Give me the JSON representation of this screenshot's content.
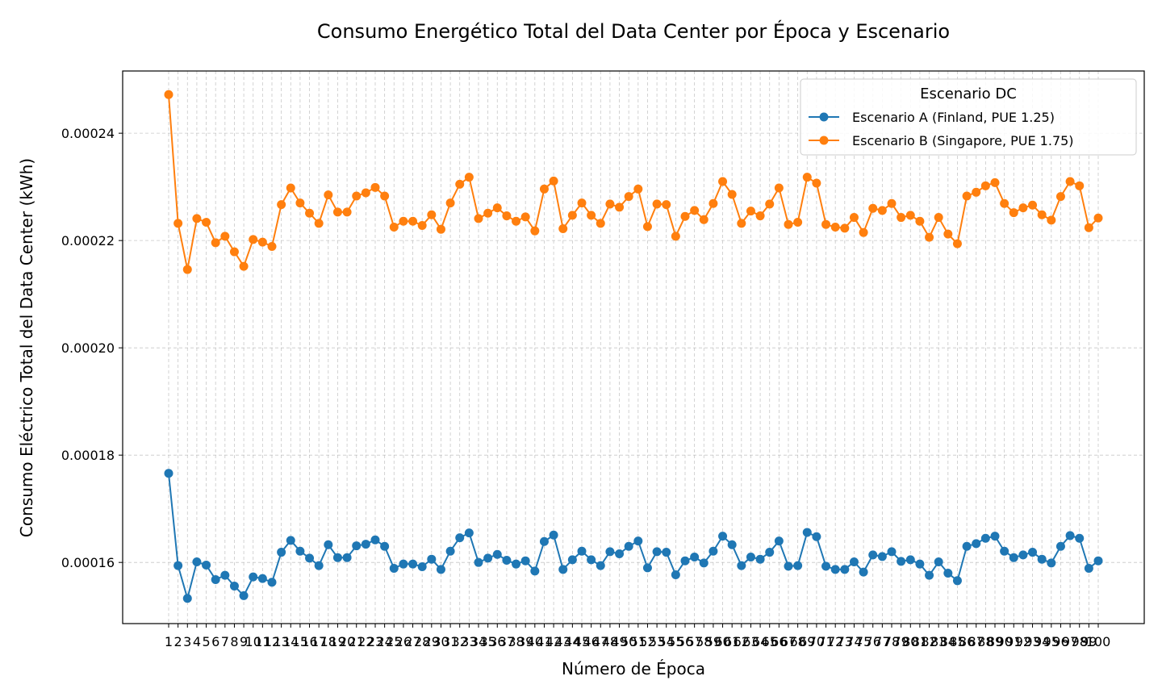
{
  "chart_data": {
    "type": "line",
    "title": "Consumo Energético Total del Data Center por Época y Escenario",
    "xlabel": "Número de Época",
    "ylabel": "Consumo Eléctrico Total del Data Center (kWh)",
    "legend_title": "Escenario DC",
    "legend_position": "top-right",
    "grid": true,
    "ylim": [
      0.0001486,
      0.0002516
    ],
    "yticks": [
      "0.00016",
      "0.00018",
      "0.00020",
      "0.00022",
      "0.00024"
    ],
    "x": [
      1,
      2,
      3,
      4,
      5,
      6,
      7,
      8,
      9,
      10,
      11,
      12,
      13,
      14,
      15,
      16,
      17,
      18,
      19,
      20,
      21,
      22,
      23,
      24,
      25,
      26,
      27,
      28,
      29,
      30,
      31,
      32,
      33,
      34,
      35,
      36,
      37,
      38,
      39,
      40,
      41,
      42,
      43,
      44,
      45,
      46,
      47,
      48,
      49,
      50,
      51,
      52,
      53,
      54,
      55,
      56,
      57,
      58,
      59,
      60,
      61,
      62,
      63,
      64,
      65,
      66,
      67,
      68,
      69,
      70,
      71,
      72,
      73,
      74,
      75,
      76,
      77,
      78,
      79,
      80,
      81,
      82,
      83,
      84,
      85,
      86,
      87,
      88,
      89,
      90,
      91,
      92,
      93,
      94,
      95,
      96,
      97,
      98,
      99,
      100
    ],
    "series": [
      {
        "name": "Escenario A (Finland, PUE 1.25)",
        "color": "#1f77b4",
        "values": [
          0.0001766,
          0.0001594,
          0.0001533,
          0.0001601,
          0.0001595,
          0.0001568,
          0.0001576,
          0.0001556,
          0.0001538,
          0.0001573,
          0.000157,
          0.0001563,
          0.0001619,
          0.0001641,
          0.0001621,
          0.0001608,
          0.0001594,
          0.0001633,
          0.0001609,
          0.0001609,
          0.0001631,
          0.0001634,
          0.0001642,
          0.000163,
          0.0001589,
          0.0001597,
          0.0001597,
          0.0001592,
          0.0001606,
          0.0001587,
          0.0001621,
          0.0001646,
          0.0001655,
          0.00016,
          0.0001608,
          0.0001615,
          0.0001604,
          0.0001597,
          0.0001603,
          0.0001584,
          0.0001639,
          0.0001651,
          0.0001587,
          0.0001605,
          0.0001621,
          0.0001605,
          0.0001594,
          0.000162,
          0.0001616,
          0.000163,
          0.000164,
          0.000159,
          0.000162,
          0.0001619,
          0.0001577,
          0.0001603,
          0.000161,
          0.0001599,
          0.0001621,
          0.0001649,
          0.0001633,
          0.0001594,
          0.000161,
          0.0001606,
          0.0001619,
          0.000164,
          0.0001593,
          0.0001594,
          0.0001656,
          0.0001648,
          0.0001593,
          0.0001587,
          0.0001587,
          0.0001601,
          0.0001582,
          0.0001614,
          0.0001611,
          0.000162,
          0.0001602,
          0.0001605,
          0.0001597,
          0.0001576,
          0.0001601,
          0.000158,
          0.0001566,
          0.000163,
          0.0001635,
          0.0001645,
          0.0001649,
          0.0001621,
          0.0001609,
          0.0001614,
          0.0001619,
          0.0001606,
          0.0001599,
          0.000163,
          0.000165,
          0.0001645,
          0.0001589,
          0.0001603
        ]
      },
      {
        "name": "Escenario B (Singapore, PUE 1.75)",
        "color": "#ff7f0e",
        "values": [
          0.0002472,
          0.0002232,
          0.0002146,
          0.0002241,
          0.0002234,
          0.0002196,
          0.0002208,
          0.0002179,
          0.0002152,
          0.0002202,
          0.0002197,
          0.0002189,
          0.0002267,
          0.0002298,
          0.000227,
          0.0002251,
          0.0002232,
          0.0002285,
          0.0002253,
          0.0002253,
          0.0002283,
          0.0002289,
          0.0002299,
          0.0002283,
          0.0002225,
          0.0002236,
          0.0002236,
          0.0002228,
          0.0002248,
          0.0002221,
          0.000227,
          0.0002305,
          0.0002318,
          0.0002241,
          0.0002251,
          0.0002261,
          0.0002246,
          0.0002236,
          0.0002244,
          0.0002218,
          0.0002296,
          0.0002311,
          0.0002222,
          0.0002247,
          0.000227,
          0.0002247,
          0.0002232,
          0.0002268,
          0.0002262,
          0.0002282,
          0.0002296,
          0.0002226,
          0.0002268,
          0.0002267,
          0.0002208,
          0.0002245,
          0.0002256,
          0.0002239,
          0.0002269,
          0.000231,
          0.0002286,
          0.0002232,
          0.0002255,
          0.0002246,
          0.0002268,
          0.0002298,
          0.000223,
          0.0002234,
          0.0002318,
          0.0002307,
          0.000223,
          0.0002225,
          0.0002223,
          0.0002243,
          0.0002215,
          0.000226,
          0.0002256,
          0.0002269,
          0.0002243,
          0.0002247,
          0.0002236,
          0.0002206,
          0.0002243,
          0.0002212,
          0.0002194,
          0.0002283,
          0.000229,
          0.0002302,
          0.0002308,
          0.0002269,
          0.0002252,
          0.0002261,
          0.0002266,
          0.0002248,
          0.0002238,
          0.0002282,
          0.000231,
          0.0002302,
          0.0002224,
          0.0002242
        ]
      }
    ]
  }
}
